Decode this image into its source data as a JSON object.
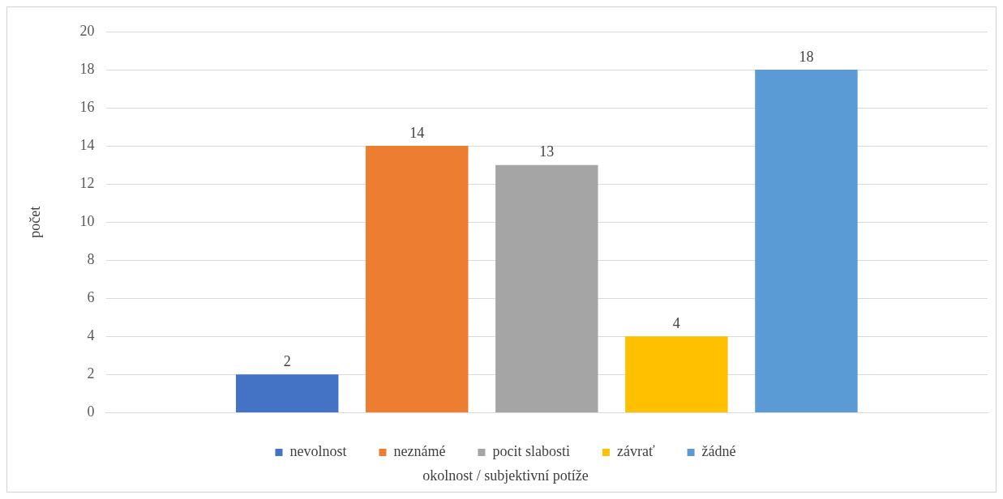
{
  "chart_data": {
    "type": "bar",
    "xlabel": "okolnost / subjektivní potíže",
    "ylabel": "počet",
    "categories": [
      null
    ],
    "series": [
      {
        "name": "nevolnost",
        "color": "#4472c4",
        "values": [
          2
        ]
      },
      {
        "name": "neznámé",
        "color": "#ed7d31",
        "values": [
          14
        ]
      },
      {
        "name": "pocit slabosti",
        "color": "#a5a5a5",
        "values": [
          13
        ]
      },
      {
        "name": "závrať",
        "color": "#ffc000",
        "values": [
          4
        ]
      },
      {
        "name": "žádné",
        "color": "#5b9bd5",
        "values": [
          18
        ]
      }
    ],
    "ylim": [
      0,
      20
    ],
    "yticks": [
      0,
      2,
      4,
      6,
      8,
      10,
      12,
      14,
      16,
      18,
      20
    ],
    "grid": "y",
    "legend": "bottom",
    "data_labels": true
  }
}
